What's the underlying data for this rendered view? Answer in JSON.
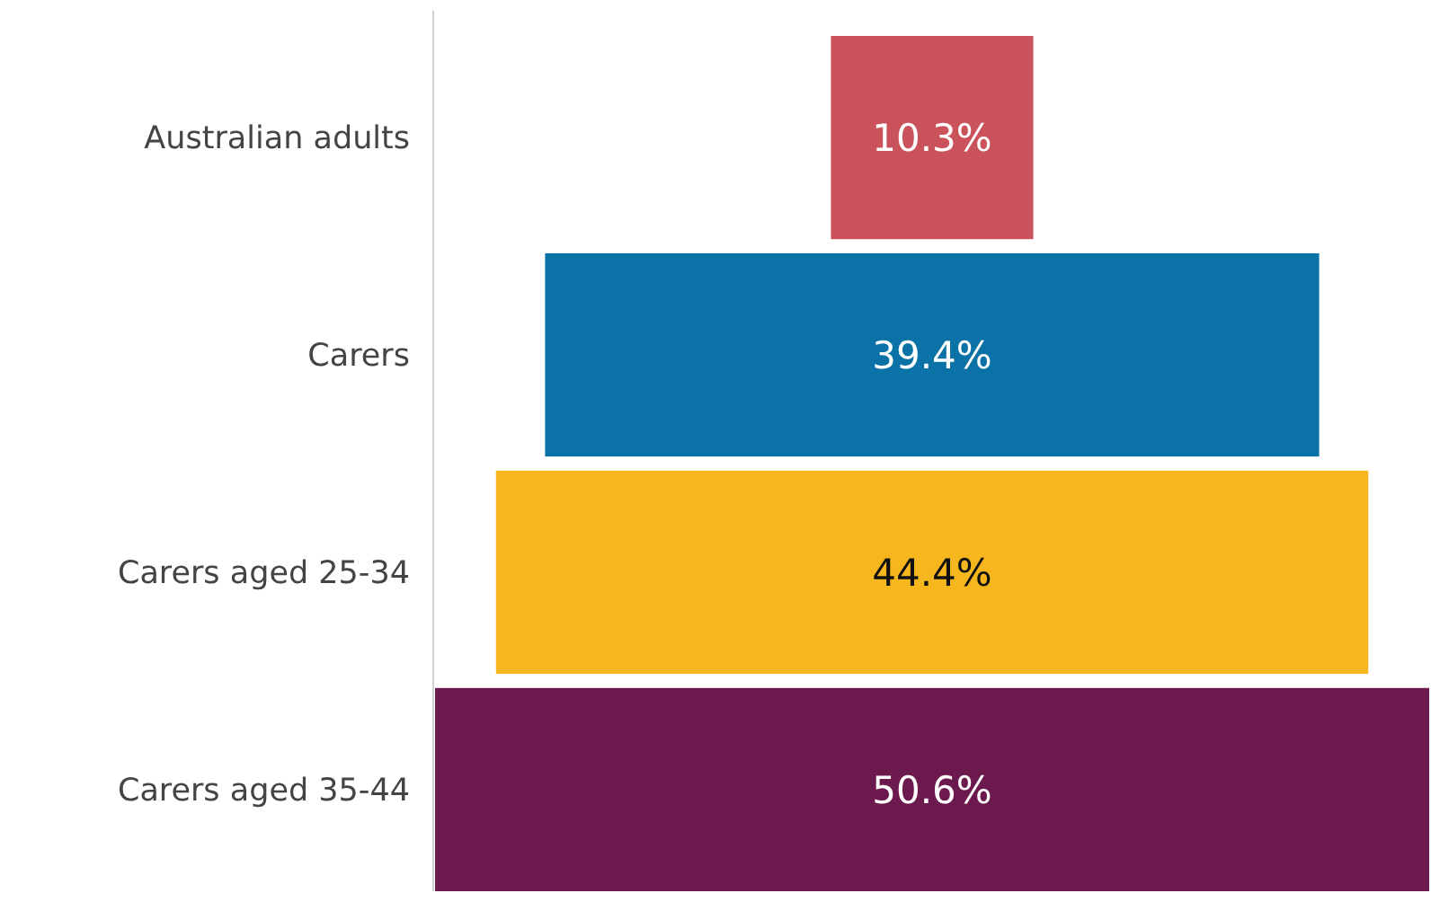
{
  "chart_data": {
    "type": "other",
    "categories": [
      "Australian adults",
      "Carers",
      "Carers aged 25-34",
      "Carers aged 35-44"
    ],
    "values": [
      10.3,
      39.4,
      44.4,
      50.6
    ],
    "colors": [
      "#c9525b",
      "#0a72a6",
      "#f6b61e",
      "#6c1a4e"
    ],
    "value_labels": [
      "10.3%",
      "39.4%",
      "44.4%",
      "50.6%"
    ]
  }
}
